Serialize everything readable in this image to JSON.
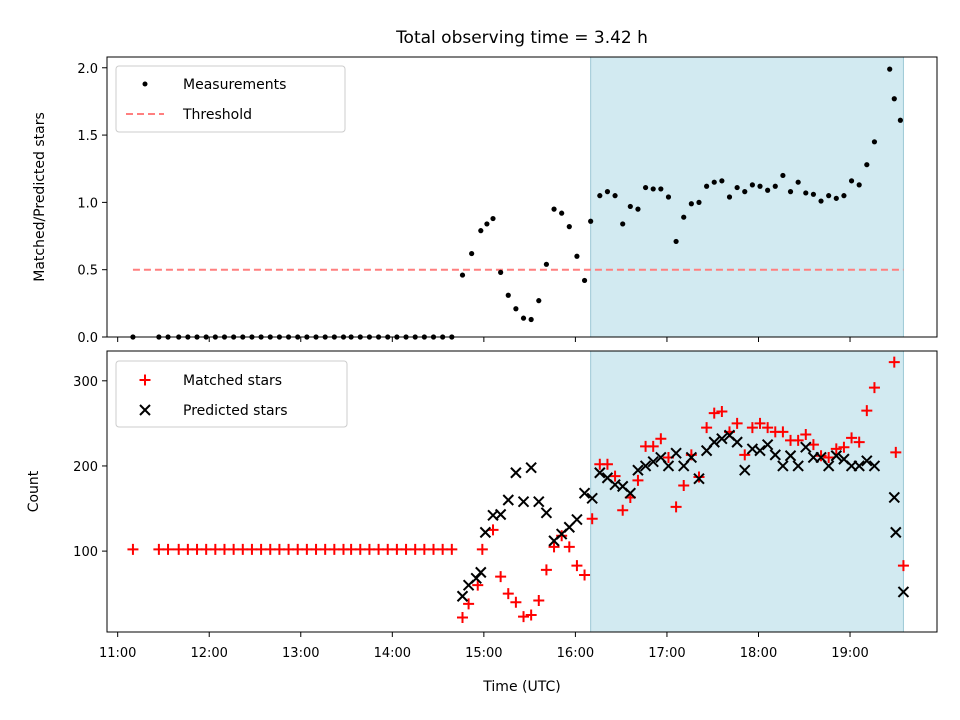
{
  "chart_data": [
    {
      "type": "scatter",
      "title": "Total observing time = 3.42 h",
      "xlabel": "",
      "ylabel": "Matched/Predicted stars",
      "xlim": [
        "10:53",
        "19:57"
      ],
      "ylim": [
        0,
        2.08
      ],
      "yticks": [
        "0.0",
        "0.5",
        "1.0",
        "1.5",
        "2.0"
      ],
      "legend": {
        "placement": "top-left",
        "entries": [
          "Measurements",
          "Threshold"
        ]
      },
      "colors": {
        "measurements": "#000000",
        "threshold": "#ff7f7f",
        "span": "#add8e6"
      },
      "shaded_span": [
        "16:10",
        "19:35"
      ],
      "threshold": {
        "name": "Threshold",
        "value": 0.5,
        "x": [
          "11:10",
          "19:35"
        ]
      },
      "series": [
        {
          "name": "Measurements",
          "points": [
            [
              "11:10",
              0.0
            ],
            [
              "11:27",
              0.0
            ],
            [
              "11:33",
              0.0
            ],
            [
              "11:40",
              0.0
            ],
            [
              "11:46",
              0.0
            ],
            [
              "11:52",
              0.0
            ],
            [
              "11:58",
              0.0
            ],
            [
              "12:04",
              0.0
            ],
            [
              "12:10",
              0.0
            ],
            [
              "12:16",
              0.0
            ],
            [
              "12:22",
              0.0
            ],
            [
              "12:28",
              0.0
            ],
            [
              "12:34",
              0.0
            ],
            [
              "12:40",
              0.0
            ],
            [
              "12:46",
              0.0
            ],
            [
              "12:52",
              0.0
            ],
            [
              "12:58",
              0.0
            ],
            [
              "13:04",
              0.0
            ],
            [
              "13:10",
              0.0
            ],
            [
              "13:16",
              0.0
            ],
            [
              "13:22",
              0.0
            ],
            [
              "13:28",
              0.0
            ],
            [
              "13:33",
              0.0
            ],
            [
              "13:39",
              0.0
            ],
            [
              "13:45",
              0.0
            ],
            [
              "13:51",
              0.0
            ],
            [
              "13:57",
              0.0
            ],
            [
              "14:03",
              0.0
            ],
            [
              "14:09",
              0.0
            ],
            [
              "14:15",
              0.0
            ],
            [
              "14:21",
              0.0
            ],
            [
              "14:27",
              0.0
            ],
            [
              "14:33",
              0.0
            ],
            [
              "14:39",
              0.0
            ],
            [
              "14:46",
              0.46
            ],
            [
              "14:52",
              0.62
            ],
            [
              "14:58",
              0.79
            ],
            [
              "15:02",
              0.84
            ],
            [
              "15:06",
              0.88
            ],
            [
              "15:11",
              0.48
            ],
            [
              "15:16",
              0.31
            ],
            [
              "15:21",
              0.21
            ],
            [
              "15:26",
              0.14
            ],
            [
              "15:31",
              0.13
            ],
            [
              "15:36",
              0.27
            ],
            [
              "15:41",
              0.54
            ],
            [
              "15:46",
              0.95
            ],
            [
              "15:51",
              0.92
            ],
            [
              "15:56",
              0.82
            ],
            [
              "16:01",
              0.6
            ],
            [
              "16:06",
              0.42
            ],
            [
              "16:10",
              0.86
            ],
            [
              "16:16",
              1.05
            ],
            [
              "16:21",
              1.08
            ],
            [
              "16:26",
              1.05
            ],
            [
              "16:31",
              0.84
            ],
            [
              "16:36",
              0.97
            ],
            [
              "16:41",
              0.95
            ],
            [
              "16:46",
              1.11
            ],
            [
              "16:51",
              1.1
            ],
            [
              "16:56",
              1.1
            ],
            [
              "17:01",
              1.04
            ],
            [
              "17:06",
              0.71
            ],
            [
              "17:11",
              0.89
            ],
            [
              "17:16",
              0.99
            ],
            [
              "17:21",
              1.0
            ],
            [
              "17:26",
              1.12
            ],
            [
              "17:31",
              1.15
            ],
            [
              "17:36",
              1.16
            ],
            [
              "17:41",
              1.04
            ],
            [
              "17:46",
              1.11
            ],
            [
              "17:51",
              1.08
            ],
            [
              "17:56",
              1.13
            ],
            [
              "18:01",
              1.12
            ],
            [
              "18:06",
              1.09
            ],
            [
              "18:11",
              1.12
            ],
            [
              "18:16",
              1.2
            ],
            [
              "18:21",
              1.08
            ],
            [
              "18:26",
              1.15
            ],
            [
              "18:31",
              1.07
            ],
            [
              "18:36",
              1.06
            ],
            [
              "18:41",
              1.01
            ],
            [
              "18:46",
              1.05
            ],
            [
              "18:51",
              1.03
            ],
            [
              "18:56",
              1.05
            ],
            [
              "19:01",
              1.16
            ],
            [
              "19:06",
              1.13
            ],
            [
              "19:11",
              1.28
            ],
            [
              "19:16",
              1.45
            ],
            [
              "19:26",
              1.99
            ],
            [
              "19:29",
              1.77
            ],
            [
              "19:33",
              1.61
            ]
          ]
        }
      ]
    },
    {
      "type": "scatter",
      "title": "",
      "xlabel": "Time (UTC)",
      "ylabel": "Count",
      "xlim": [
        "10:53",
        "19:57"
      ],
      "ylim": [
        5,
        335
      ],
      "xticks": [
        "11:00",
        "12:00",
        "13:00",
        "14:00",
        "15:00",
        "16:00",
        "17:00",
        "18:00",
        "19:00"
      ],
      "yticks": [
        "100",
        "200",
        "300"
      ],
      "legend": {
        "placement": "top-left",
        "entries": [
          "Matched stars",
          "Predicted stars"
        ]
      },
      "colors": {
        "matched": "#ff0000",
        "predicted": "#000000",
        "span": "#add8e6"
      },
      "shaded_span": [
        "16:10",
        "19:35"
      ],
      "series": [
        {
          "name": "Matched stars",
          "marker": "plus",
          "points": [
            [
              "11:10",
              102
            ],
            [
              "11:27",
              102
            ],
            [
              "11:33",
              102
            ],
            [
              "11:40",
              102
            ],
            [
              "11:46",
              102
            ],
            [
              "11:52",
              102
            ],
            [
              "11:58",
              102
            ],
            [
              "12:04",
              102
            ],
            [
              "12:10",
              102
            ],
            [
              "12:16",
              102
            ],
            [
              "12:22",
              102
            ],
            [
              "12:28",
              102
            ],
            [
              "12:34",
              102
            ],
            [
              "12:40",
              102
            ],
            [
              "12:46",
              102
            ],
            [
              "12:52",
              102
            ],
            [
              "12:58",
              102
            ],
            [
              "13:04",
              102
            ],
            [
              "13:10",
              102
            ],
            [
              "13:16",
              102
            ],
            [
              "13:22",
              102
            ],
            [
              "13:28",
              102
            ],
            [
              "13:33",
              102
            ],
            [
              "13:39",
              102
            ],
            [
              "13:45",
              102
            ],
            [
              "13:51",
              102
            ],
            [
              "13:57",
              102
            ],
            [
              "14:03",
              102
            ],
            [
              "14:09",
              102
            ],
            [
              "14:15",
              102
            ],
            [
              "14:21",
              102
            ],
            [
              "14:27",
              102
            ],
            [
              "14:33",
              102
            ],
            [
              "14:39",
              102
            ],
            [
              "14:46",
              22
            ],
            [
              "14:50",
              38
            ],
            [
              "14:56",
              60
            ],
            [
              "14:59",
              102
            ],
            [
              "15:06",
              125
            ],
            [
              "15:11",
              70
            ],
            [
              "15:16",
              50
            ],
            [
              "15:21",
              40
            ],
            [
              "15:26",
              23
            ],
            [
              "15:31",
              25
            ],
            [
              "15:36",
              42
            ],
            [
              "15:41",
              78
            ],
            [
              "15:46",
              105
            ],
            [
              "15:51",
              118
            ],
            [
              "15:56",
              105
            ],
            [
              "16:01",
              83
            ],
            [
              "16:06",
              72
            ],
            [
              "16:11",
              138
            ],
            [
              "16:16",
              202
            ],
            [
              "16:21",
              202
            ],
            [
              "16:26",
              188
            ],
            [
              "16:31",
              148
            ],
            [
              "16:36",
              163
            ],
            [
              "16:41",
              183
            ],
            [
              "16:46",
              223
            ],
            [
              "16:51",
              223
            ],
            [
              "16:56",
              232
            ],
            [
              "17:01",
              210
            ],
            [
              "17:06",
              152
            ],
            [
              "17:11",
              177
            ],
            [
              "17:16",
              213
            ],
            [
              "17:21",
              187
            ],
            [
              "17:26",
              245
            ],
            [
              "17:31",
              262
            ],
            [
              "17:36",
              264
            ],
            [
              "17:41",
              240
            ],
            [
              "17:46",
              250
            ],
            [
              "17:51",
              213
            ],
            [
              "17:56",
              245
            ],
            [
              "18:01",
              250
            ],
            [
              "18:06",
              245
            ],
            [
              "18:11",
              240
            ],
            [
              "18:16",
              240
            ],
            [
              "18:21",
              230
            ],
            [
              "18:26",
              230
            ],
            [
              "18:31",
              237
            ],
            [
              "18:36",
              225
            ],
            [
              "18:41",
              212
            ],
            [
              "18:46",
              210
            ],
            [
              "18:51",
              220
            ],
            [
              "18:56",
              222
            ],
            [
              "19:01",
              233
            ],
            [
              "19:06",
              228
            ],
            [
              "19:11",
              265
            ],
            [
              "19:16",
              292
            ],
            [
              "19:29",
              322
            ],
            [
              "19:30",
              216
            ],
            [
              "19:35",
              83
            ]
          ]
        },
        {
          "name": "Predicted stars",
          "marker": "x",
          "points": [
            [
              "14:46",
              47
            ],
            [
              "14:50",
              60
            ],
            [
              "14:55",
              68
            ],
            [
              "14:58",
              75
            ],
            [
              "15:01",
              122
            ],
            [
              "15:06",
              142
            ],
            [
              "15:11",
              143
            ],
            [
              "15:16",
              160
            ],
            [
              "15:21",
              192
            ],
            [
              "15:26",
              158
            ],
            [
              "15:31",
              198
            ],
            [
              "15:36",
              158
            ],
            [
              "15:41",
              145
            ],
            [
              "15:46",
              112
            ],
            [
              "15:51",
              120
            ],
            [
              "15:56",
              128
            ],
            [
              "16:01",
              137
            ],
            [
              "16:06",
              168
            ],
            [
              "16:11",
              162
            ],
            [
              "16:16",
              192
            ],
            [
              "16:21",
              186
            ],
            [
              "16:26",
              178
            ],
            [
              "16:31",
              176
            ],
            [
              "16:36",
              168
            ],
            [
              "16:41",
              195
            ],
            [
              "16:46",
              200
            ],
            [
              "16:51",
              205
            ],
            [
              "16:56",
              210
            ],
            [
              "17:01",
              200
            ],
            [
              "17:06",
              215
            ],
            [
              "17:11",
              200
            ],
            [
              "17:16",
              210
            ],
            [
              "17:21",
              185
            ],
            [
              "17:26",
              218
            ],
            [
              "17:31",
              228
            ],
            [
              "17:36",
              232
            ],
            [
              "17:41",
              236
            ],
            [
              "17:46",
              228
            ],
            [
              "17:51",
              195
            ],
            [
              "17:56",
              220
            ],
            [
              "18:01",
              218
            ],
            [
              "18:06",
              225
            ],
            [
              "18:11",
              213
            ],
            [
              "18:16",
              200
            ],
            [
              "18:21",
              212
            ],
            [
              "18:26",
              200
            ],
            [
              "18:31",
              222
            ],
            [
              "18:36",
              210
            ],
            [
              "18:41",
              210
            ],
            [
              "18:46",
              200
            ],
            [
              "18:51",
              212
            ],
            [
              "18:56",
              208
            ],
            [
              "19:01",
              200
            ],
            [
              "19:06",
              200
            ],
            [
              "19:11",
              206
            ],
            [
              "19:16",
              200
            ],
            [
              "19:29",
              163
            ],
            [
              "19:30",
              122
            ],
            [
              "19:35",
              52
            ]
          ]
        }
      ]
    }
  ]
}
